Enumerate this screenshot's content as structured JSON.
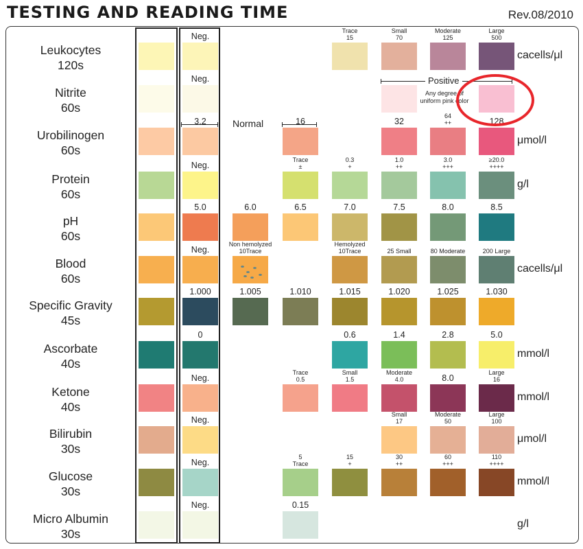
{
  "header": {
    "title": "TESTING AND READING TIME",
    "revision": "Rev.08/2010"
  },
  "colors": {
    "annotation_circle": "#e8262b",
    "frame": "#333333"
  },
  "rows": [
    {
      "name": "Leukocytes",
      "time": "120s",
      "unit": "cacells/μl",
      "swatches": [
        {
          "col": 0,
          "color": "#fdf6b6"
        },
        {
          "col": 1,
          "color": "#fdf5b8",
          "label": "Neg."
        },
        {
          "col": 4,
          "color": "#f0e2ad",
          "label": "Trace\n15"
        },
        {
          "col": 5,
          "color": "#e3b09c",
          "label": "Small\n70"
        },
        {
          "col": 6,
          "color": "#b9869a",
          "label": "Moderate\n125"
        },
        {
          "col": 7,
          "color": "#765578",
          "label": "Large\n500"
        }
      ]
    },
    {
      "name": "Nitrite",
      "time": "60s",
      "unit": "",
      "swatches": [
        {
          "col": 0,
          "color": "#fdfbe9"
        },
        {
          "col": 1,
          "color": "#fcf9e7",
          "label": "Neg."
        },
        {
          "col": 5,
          "color": "#fde4e5"
        },
        {
          "col": 7,
          "color": "#f9bfd2"
        }
      ]
    },
    {
      "name": "Urobilinogen",
      "time": "60s",
      "unit": "μmol/l",
      "swatches": [
        {
          "col": 0,
          "color": "#fdcaa4"
        },
        {
          "col": 1,
          "color": "#fcc9a2",
          "label": "3.2"
        },
        {
          "col": 3,
          "color": "#f4a587",
          "label": "16"
        },
        {
          "col": 5,
          "color": "#ef7f86",
          "label": "32"
        },
        {
          "col": 6,
          "color": "#e97e83",
          "label": "64\n++"
        },
        {
          "col": 7,
          "color": "#e8587d",
          "label": "128"
        }
      ]
    },
    {
      "name": "Protein",
      "time": "60s",
      "unit": "g/l",
      "swatches": [
        {
          "col": 0,
          "color": "#b8d895"
        },
        {
          "col": 1,
          "color": "#fdf48a",
          "label": "Neg."
        },
        {
          "col": 3,
          "color": "#d5e06f",
          "label": "Trace\n±"
        },
        {
          "col": 4,
          "color": "#b5d897",
          "label": "0.3\n+"
        },
        {
          "col": 5,
          "color": "#a4c99c",
          "label": "1.0\n++"
        },
        {
          "col": 6,
          "color": "#85c2ae",
          "label": "3.0\n+++"
        },
        {
          "col": 7,
          "color": "#6b8f7d",
          "label": "≥20.0\n++++"
        }
      ]
    },
    {
      "name": "pH",
      "time": "60s",
      "unit": "",
      "swatches": [
        {
          "col": 0,
          "color": "#fcc877"
        },
        {
          "col": 1,
          "color": "#ee7b4f",
          "label": "5.0"
        },
        {
          "col": 2,
          "color": "#f49f5b",
          "label": "6.0"
        },
        {
          "col": 3,
          "color": "#fcc776",
          "label": "6.5"
        },
        {
          "col": 4,
          "color": "#ccb76a",
          "label": "7.0"
        },
        {
          "col": 5,
          "color": "#a19446",
          "label": "7.5"
        },
        {
          "col": 6,
          "color": "#749977",
          "label": "8.0"
        },
        {
          "col": 7,
          "color": "#1f7a80",
          "label": "8.5"
        }
      ]
    },
    {
      "name": "Blood",
      "time": "60s",
      "unit": "cacells/μl",
      "swatches": [
        {
          "col": 0,
          "color": "#f7af4f"
        },
        {
          "col": 1,
          "color": "#f7ae4e",
          "label": "Neg."
        },
        {
          "col": 2,
          "color": "#f6a947",
          "label": "Non hemolyzed\n10Trace",
          "speckled": true
        },
        {
          "col": 4,
          "color": "#cf9844",
          "label": "Hemolyzed\n10Trace"
        },
        {
          "col": 5,
          "color": "#b29b50",
          "label": "25 Small"
        },
        {
          "col": 6,
          "color": "#7d8d6c",
          "label": "80 Moderate"
        },
        {
          "col": 7,
          "color": "#5f7f72",
          "label": "200 Large"
        }
      ]
    },
    {
      "name": "Specific Gravity",
      "time": "45s",
      "unit": "",
      "swatches": [
        {
          "col": 0,
          "color": "#b49a30"
        },
        {
          "col": 1,
          "color": "#2c4b5e",
          "label": "1.000"
        },
        {
          "col": 2,
          "color": "#566a51",
          "label": "1.005"
        },
        {
          "col": 3,
          "color": "#7c7d55",
          "label": "1.010"
        },
        {
          "col": 4,
          "color": "#9c862e",
          "label": "1.015"
        },
        {
          "col": 5,
          "color": "#b6952d",
          "label": "1.020"
        },
        {
          "col": 6,
          "color": "#be912e",
          "label": "1.025"
        },
        {
          "col": 7,
          "color": "#eeaa2a",
          "label": "1.030"
        }
      ]
    },
    {
      "name": "Ascorbate",
      "time": "40s",
      "unit": "mmol/l",
      "swatches": [
        {
          "col": 0,
          "color": "#1f7b72"
        },
        {
          "col": 1,
          "color": "#23786e",
          "label": "0"
        },
        {
          "col": 4,
          "color": "#2ea6a2",
          "label": "0.6"
        },
        {
          "col": 5,
          "color": "#7bbe59",
          "label": "1.4"
        },
        {
          "col": 6,
          "color": "#b3bd4f",
          "label": "2.8"
        },
        {
          "col": 7,
          "color": "#f7ee6a",
          "label": "5.0"
        }
      ]
    },
    {
      "name": "Ketone",
      "time": "40s",
      "unit": "mmol/l",
      "swatches": [
        {
          "col": 0,
          "color": "#f18384"
        },
        {
          "col": 1,
          "color": "#f8b18b",
          "label": "Neg."
        },
        {
          "col": 3,
          "color": "#f5a28c",
          "label": "Trace\n0.5"
        },
        {
          "col": 4,
          "color": "#f07b85",
          "label": "Small\n1.5"
        },
        {
          "col": 5,
          "color": "#c4526b",
          "label": "Moderate\n4.0"
        },
        {
          "col": 6,
          "color": "#8c3657",
          "label": "8.0"
        },
        {
          "col": 7,
          "color": "#6b2a4a",
          "label": "Large\n16"
        }
      ]
    },
    {
      "name": "Bilirubin",
      "time": "30s",
      "unit": "μmol/l",
      "swatches": [
        {
          "col": 0,
          "color": "#e3ab8d"
        },
        {
          "col": 1,
          "color": "#fddb86",
          "label": "Neg."
        },
        {
          "col": 5,
          "color": "#fdc884",
          "label": "Small\n17"
        },
        {
          "col": 6,
          "color": "#e5b095",
          "label": "Moderate\n50"
        },
        {
          "col": 7,
          "color": "#e2ad98",
          "label": "Large\n100"
        }
      ]
    },
    {
      "name": "Glucose",
      "time": "30s",
      "unit": "mmol/l",
      "swatches": [
        {
          "col": 0,
          "color": "#8e8a42"
        },
        {
          "col": 1,
          "color": "#a6d5c8",
          "label": "Neg."
        },
        {
          "col": 3,
          "color": "#a6cf8a",
          "label": "5\nTrace"
        },
        {
          "col": 4,
          "color": "#8f8f3f",
          "label": "15\n+"
        },
        {
          "col": 5,
          "color": "#b88039",
          "label": "30\n++"
        },
        {
          "col": 6,
          "color": "#a1602a",
          "label": "60\n+++"
        },
        {
          "col": 7,
          "color": "#874726",
          "label": "110\n++++"
        }
      ]
    },
    {
      "name": "Micro Albumin",
      "time": "30s",
      "unit": "g/l",
      "swatches": [
        {
          "col": 0,
          "color": "#f3f7e6"
        },
        {
          "col": 1,
          "color": "#f3f7e5",
          "label": "Neg."
        },
        {
          "col": 3,
          "color": "#d6e6df",
          "label": "0.15"
        }
      ]
    }
  ],
  "annotations": {
    "normal": "Normal",
    "positive": "Positive",
    "nitrite_note": "Any degree of\nuniform pink color"
  }
}
